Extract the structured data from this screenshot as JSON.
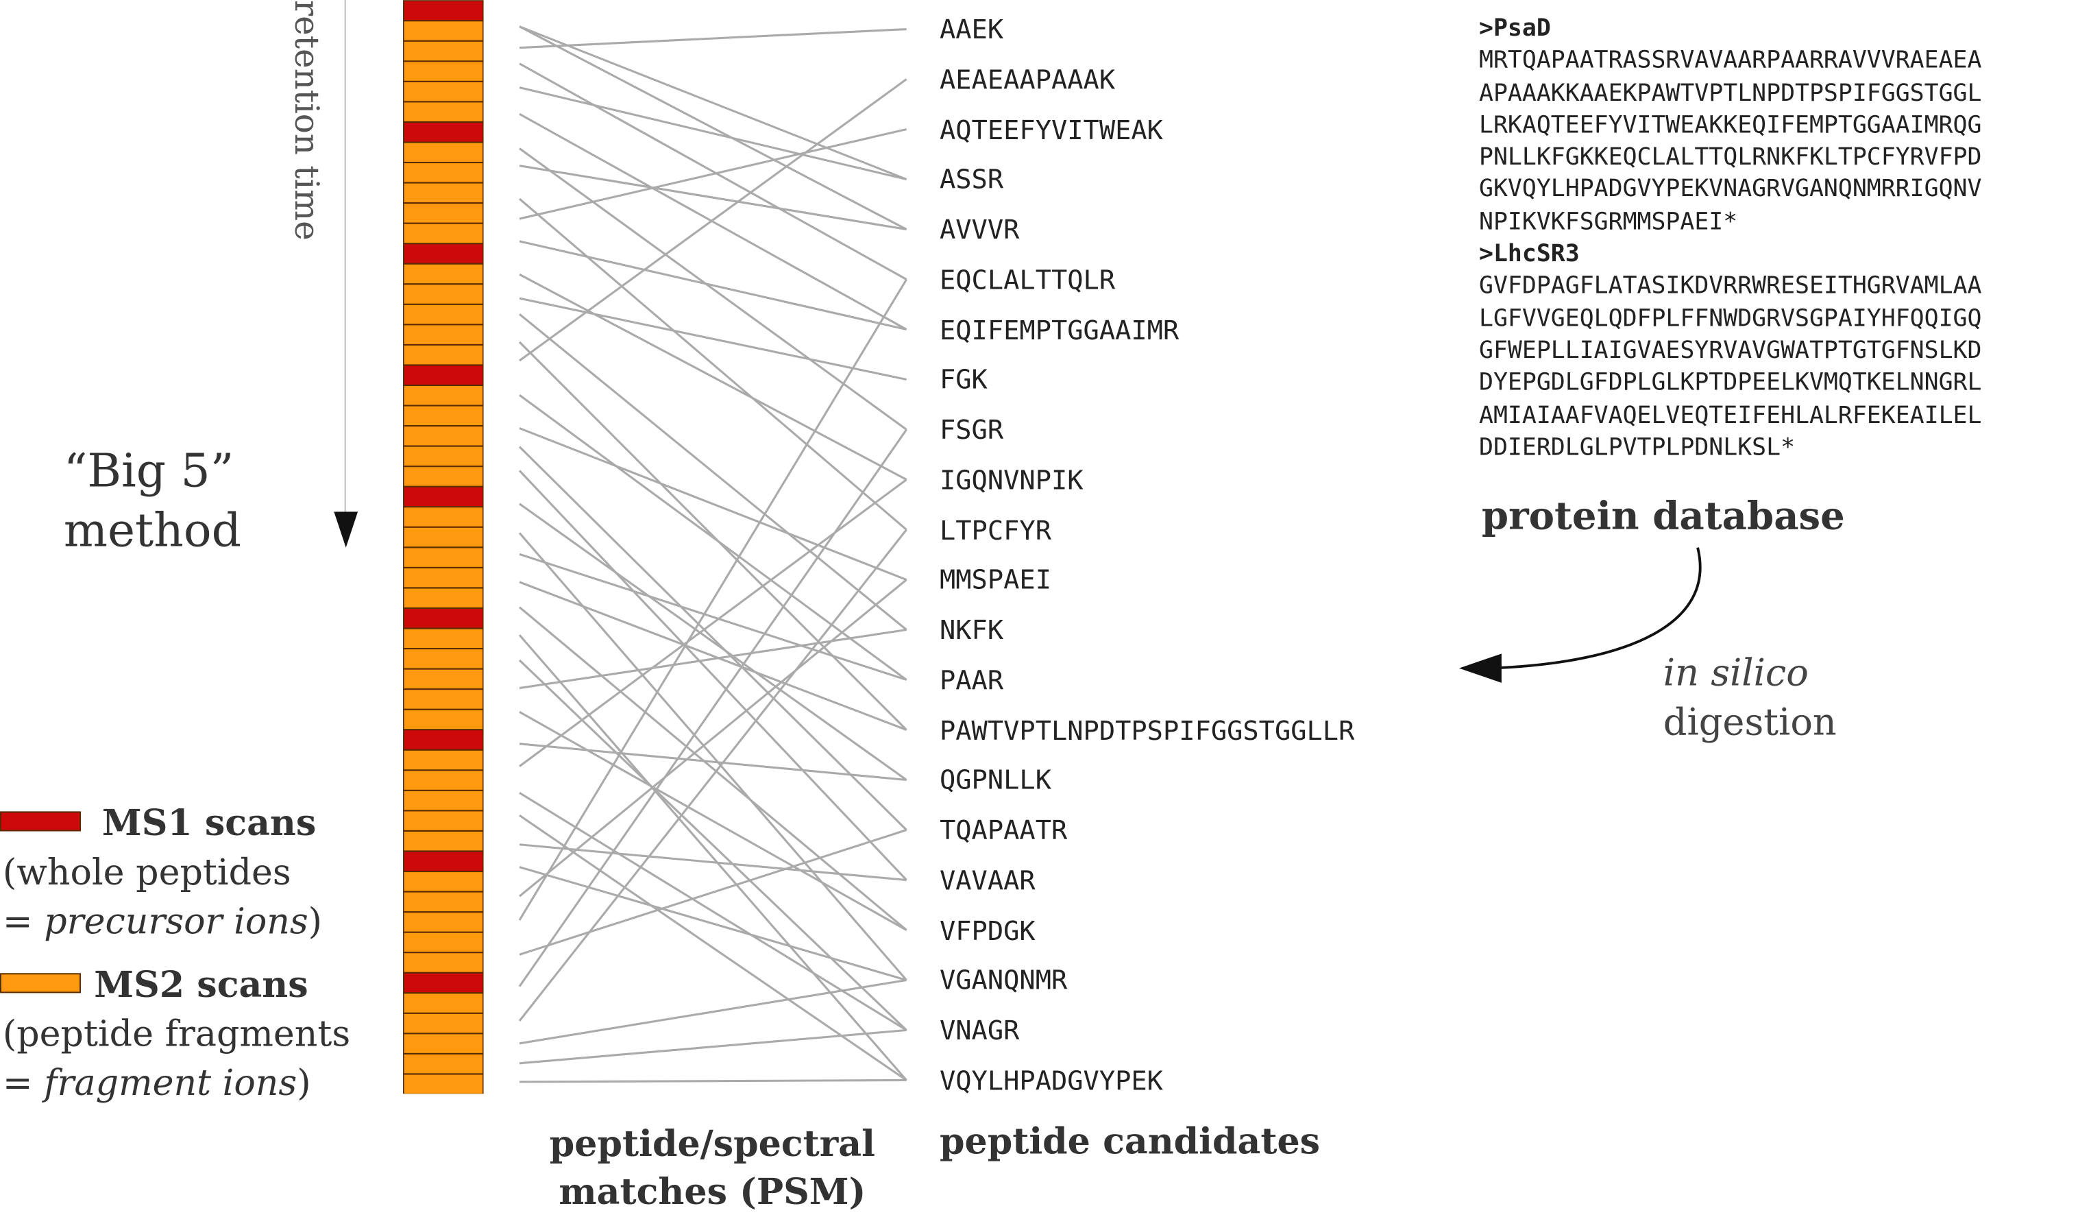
{
  "retention_axis_label": "retention time",
  "method_label": [
    "“Big 5”",
    "method"
  ],
  "scan_sequence": [
    "MS1",
    "MS2",
    "MS2",
    "MS2",
    "MS2",
    "MS2",
    "MS1",
    "MS2",
    "MS2",
    "MS2",
    "MS2",
    "MS2",
    "MS1",
    "MS2",
    "MS2",
    "MS2",
    "MS2",
    "MS2",
    "MS1",
    "MS2",
    "MS2",
    "MS2",
    "MS2",
    "MS2",
    "MS1",
    "MS2",
    "MS2",
    "MS2",
    "MS2",
    "MS2",
    "MS1",
    "MS2",
    "MS2",
    "MS2",
    "MS2",
    "MS2",
    "MS1",
    "MS2",
    "MS2",
    "MS2",
    "MS2",
    "MS2",
    "MS1",
    "MS2",
    "MS2",
    "MS2",
    "MS2",
    "MS2",
    "MS1",
    "MS2",
    "MS2",
    "MS2",
    "MS2",
    "MS2"
  ],
  "colors": {
    "ms1": "#cc0a0a",
    "ms2": "#ff9a10",
    "psm_line": "#aaaaaa",
    "scan_border": "#5a2a00"
  },
  "peptide_candidates": [
    "AAEK",
    "AEAEAAPAAAK",
    "AQTEEFYVITWEAK",
    "ASSR",
    "AVVVR",
    "EQCLALTTQLR",
    "EQIFEMPTGGAAIMR",
    "FGK",
    "FSGR",
    "IGQNVNPIK",
    "LTPCFYR",
    "MMSPAEI",
    "NKFK",
    "PAAR",
    "PAWTVPTLNPDTPSPIFGGSTGGLLR",
    "QGPNLLK",
    "TQAPAATR",
    "VAVAAR",
    "VFPDGK",
    "VGANQNMR",
    "VNAGR",
    "VQYLHPADGVYPEK"
  ],
  "database": {
    "title": "protein database",
    "entries": [
      {
        "header": ">PsaD",
        "lines": [
          "MRTQAPAATRASSRVAVAARPAARRAVVVRAEAEA",
          "APAAAKKAAEKPAWTVPTLNPDTPSPIFGGSTGGL",
          "LRKAQTEEFYVITWEAKKEQIFEMPTGGAAIMRQG",
          "PNLLKFGKKEQCLALTTQLRNKFKLTPCFYRVFPD",
          "GKVQYLHPADGVYPEKVNAGRVGANQNMRRIGQNV",
          "NPIKVKFSGRMMSPAEI*"
        ]
      },
      {
        "header": ">LhcSR3",
        "lines": [
          "GVFDPAGFLATASIKDVRRWRESEITHGRVAMLAA",
          "LGFVVGEQLQDFPLFFNWDGRVSGPAIYHFQQIGQ",
          "GFWEPLLIAIGVAESYRVAVGWATPTGTGFNSLKD",
          "DYEPGDLGFDPLGLKPTDPEELKVMQTKELNNGRL",
          "AMIAIAAFVAQELVEQTEIFEHLALRFEKEAILEL",
          "DDIERDLGLPVTPLPDNLKSL*"
        ]
      }
    ]
  },
  "digestion_label": {
    "italic": "in silico",
    "plain": "digestion"
  },
  "legend": {
    "ms1": {
      "title": "MS1 scans",
      "line1": "(whole peptides",
      "line2_prefix": "= ",
      "line2_italic": "precursor ions",
      "line2_suffix": ")"
    },
    "ms2": {
      "title": "MS2 scans",
      "line1": "(peptide fragments",
      "line2_prefix": "= ",
      "line2_italic": "fragment ions",
      "line2_suffix": ")"
    }
  },
  "psm_title": [
    "peptide/spectral",
    "matches (PSM)"
  ],
  "candidates_title": "peptide candidates"
}
